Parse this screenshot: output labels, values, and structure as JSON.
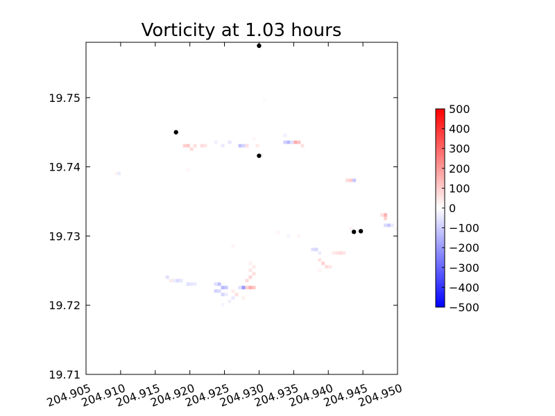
{
  "chart_data": {
    "type": "heatmap",
    "title": "Vorticity at 1.03 hours",
    "xlabel": "",
    "ylabel": "",
    "xlim": [
      204.905,
      204.95
    ],
    "ylim": [
      19.71,
      19.758
    ],
    "x_ticks": [
      "204.905",
      "204.910",
      "204.915",
      "204.920",
      "204.925",
      "204.930",
      "204.935",
      "204.940",
      "204.945",
      "204.950"
    ],
    "y_ticks": [
      "19.71",
      "19.72",
      "19.73",
      "19.74",
      "19.75"
    ],
    "grid": false,
    "colorbar": {
      "range": [
        -500,
        500
      ],
      "ticks": [
        "500",
        "400",
        "300",
        "200",
        "100",
        "0",
        "−100",
        "−200",
        "−300",
        "−400",
        "−500"
      ],
      "colormap": "bwr",
      "low_color": "#0000ff",
      "mid_color": "#ffffff",
      "high_color": "#ff0000"
    },
    "cell_size": [
      0.0005,
      0.0005
    ],
    "cells": [
      {
        "x": 204.919,
        "y": 19.7428,
        "v": 90
      },
      {
        "x": 204.9195,
        "y": 19.7428,
        "v": 110
      },
      {
        "x": 204.92,
        "y": 19.7423,
        "v": 70
      },
      {
        "x": 204.9205,
        "y": 19.7428,
        "v": 60
      },
      {
        "x": 204.9215,
        "y": 19.7428,
        "v": 70
      },
      {
        "x": 204.922,
        "y": 19.7428,
        "v": 50
      },
      {
        "x": 204.9235,
        "y": 19.7433,
        "v": -30
      },
      {
        "x": 204.9245,
        "y": 19.7428,
        "v": -40
      },
      {
        "x": 204.9255,
        "y": 19.7433,
        "v": -50
      },
      {
        "x": 204.927,
        "y": 19.7428,
        "v": -120
      },
      {
        "x": 204.9275,
        "y": 19.7428,
        "v": -80
      },
      {
        "x": 204.928,
        "y": 19.7428,
        "v": 60
      },
      {
        "x": 204.9295,
        "y": 19.7428,
        "v": 40
      },
      {
        "x": 204.929,
        "y": 19.7438,
        "v": 20
      },
      {
        "x": 204.9335,
        "y": 19.7433,
        "v": -90
      },
      {
        "x": 204.934,
        "y": 19.7433,
        "v": -140
      },
      {
        "x": 204.9345,
        "y": 19.7433,
        "v": -60
      },
      {
        "x": 204.935,
        "y": 19.7433,
        "v": 160
      },
      {
        "x": 204.9355,
        "y": 19.7433,
        "v": 120
      },
      {
        "x": 204.936,
        "y": 19.7428,
        "v": 60
      },
      {
        "x": 204.9335,
        "y": 19.7443,
        "v": -30
      },
      {
        "x": 204.9425,
        "y": 19.7378,
        "v": 70
      },
      {
        "x": 204.943,
        "y": 19.7378,
        "v": 100
      },
      {
        "x": 204.9435,
        "y": 19.7378,
        "v": -110
      },
      {
        "x": 204.9475,
        "y": 19.7328,
        "v": 60
      },
      {
        "x": 204.948,
        "y": 19.7328,
        "v": 150
      },
      {
        "x": 204.948,
        "y": 19.7323,
        "v": 90
      },
      {
        "x": 204.9485,
        "y": 19.7313,
        "v": -110
      },
      {
        "x": 204.948,
        "y": 19.7313,
        "v": -70
      },
      {
        "x": 204.949,
        "y": 19.7313,
        "v": -40
      },
      {
        "x": 204.9495,
        "y": 19.7308,
        "v": 20
      },
      {
        "x": 204.943,
        "y": 19.7308,
        "v": 30
      },
      {
        "x": 204.9375,
        "y": 19.7278,
        "v": -60
      },
      {
        "x": 204.938,
        "y": 19.7278,
        "v": -80
      },
      {
        "x": 204.9385,
        "y": 19.7273,
        "v": -40
      },
      {
        "x": 204.9385,
        "y": 19.7263,
        "v": 60
      },
      {
        "x": 204.939,
        "y": 19.7258,
        "v": 90
      },
      {
        "x": 204.9395,
        "y": 19.7253,
        "v": 70
      },
      {
        "x": 204.94,
        "y": 19.7253,
        "v": 50
      },
      {
        "x": 204.9405,
        "y": 19.7273,
        "v": 40
      },
      {
        "x": 204.941,
        "y": 19.7273,
        "v": 60
      },
      {
        "x": 204.9415,
        "y": 19.7273,
        "v": 70
      },
      {
        "x": 204.942,
        "y": 19.7273,
        "v": 50
      },
      {
        "x": 204.9385,
        "y": 19.7248,
        "v": 20
      },
      {
        "x": 204.9235,
        "y": 19.7228,
        "v": -60
      },
      {
        "x": 204.924,
        "y": 19.7228,
        "v": -120
      },
      {
        "x": 204.9245,
        "y": 19.7223,
        "v": -140
      },
      {
        "x": 204.925,
        "y": 19.7223,
        "v": -110
      },
      {
        "x": 204.9235,
        "y": 19.7218,
        "v": -90
      },
      {
        "x": 204.924,
        "y": 19.7218,
        "v": -70
      },
      {
        "x": 204.9245,
        "y": 19.7213,
        "v": -80
      },
      {
        "x": 204.925,
        "y": 19.7213,
        "v": -40
      },
      {
        "x": 204.926,
        "y": 19.7218,
        "v": 40
      },
      {
        "x": 204.9265,
        "y": 19.7213,
        "v": 60
      },
      {
        "x": 204.9275,
        "y": 19.7223,
        "v": -200
      },
      {
        "x": 204.927,
        "y": 19.7223,
        "v": -60
      },
      {
        "x": 204.928,
        "y": 19.7223,
        "v": 90
      },
      {
        "x": 204.9285,
        "y": 19.7223,
        "v": 160
      },
      {
        "x": 204.929,
        "y": 19.7223,
        "v": 110
      },
      {
        "x": 204.928,
        "y": 19.7233,
        "v": 70
      },
      {
        "x": 204.9285,
        "y": 19.7238,
        "v": 80
      },
      {
        "x": 204.929,
        "y": 19.7243,
        "v": 60
      },
      {
        "x": 204.9285,
        "y": 19.7248,
        "v": 50
      },
      {
        "x": 204.929,
        "y": 19.7253,
        "v": 40
      },
      {
        "x": 204.9285,
        "y": 19.7258,
        "v": 30
      },
      {
        "x": 204.9255,
        "y": 19.7203,
        "v": -30
      },
      {
        "x": 204.926,
        "y": 19.7208,
        "v": -40
      },
      {
        "x": 204.9275,
        "y": 19.7208,
        "v": 30
      },
      {
        "x": 204.9245,
        "y": 19.7198,
        "v": -20
      },
      {
        "x": 204.9165,
        "y": 19.7238,
        "v": -60
      },
      {
        "x": 204.917,
        "y": 19.7233,
        "v": 40
      },
      {
        "x": 204.9175,
        "y": 19.7233,
        "v": -40
      },
      {
        "x": 204.918,
        "y": 19.7233,
        "v": -70
      },
      {
        "x": 204.9185,
        "y": 19.7233,
        "v": -50
      },
      {
        "x": 204.9195,
        "y": 19.7228,
        "v": -60
      },
      {
        "x": 204.92,
        "y": 19.7228,
        "v": -50
      },
      {
        "x": 204.9205,
        "y": 19.7228,
        "v": -40
      },
      {
        "x": 204.9095,
        "y": 19.7388,
        "v": -40
      },
      {
        "x": 204.909,
        "y": 19.7388,
        "v": 20
      },
      {
        "x": 204.9305,
        "y": 19.7493,
        "v": 10
      },
      {
        "x": 204.9325,
        "y": 19.7303,
        "v": 20
      },
      {
        "x": 204.934,
        "y": 19.7298,
        "v": -20
      },
      {
        "x": 204.9355,
        "y": 19.7298,
        "v": 20
      },
      {
        "x": 204.9195,
        "y": 19.7393,
        "v": 15
      },
      {
        "x": 204.926,
        "y": 19.7283,
        "v": 20
      }
    ],
    "markers": [
      {
        "x": 204.93,
        "y": 19.7575
      },
      {
        "x": 204.918,
        "y": 19.745
      },
      {
        "x": 204.93,
        "y": 19.7416
      },
      {
        "x": 204.9437,
        "y": 19.7306
      },
      {
        "x": 204.9447,
        "y": 19.7307
      }
    ],
    "marker_color": "#000000"
  }
}
